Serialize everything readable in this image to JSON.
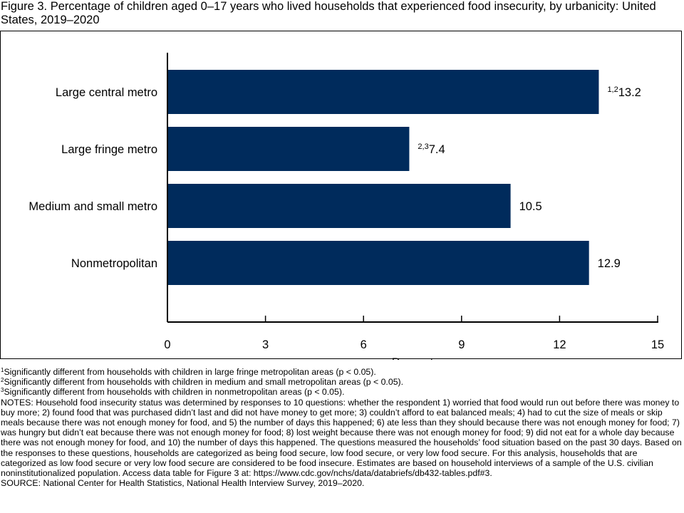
{
  "title": "Figure 3. Percentage of children aged 0–17 years who lived households that experienced food insecurity, by urbanicity: United States, 2019–2020",
  "chart_data": {
    "type": "bar",
    "orientation": "horizontal",
    "categories": [
      "Large central metro",
      "Large fringe metro",
      "Medium and small metro",
      "Nonmetropolitan"
    ],
    "values": [
      13.2,
      7.4,
      10.5,
      12.9
    ],
    "value_labels": [
      "13.2",
      "7.4",
      "10.5",
      "12.9"
    ],
    "value_superscripts": [
      "1,2",
      "2,3",
      "",
      ""
    ],
    "xlabel": "Percent",
    "ylabel": "",
    "xlim": [
      0,
      15
    ],
    "xticks": [
      0,
      3,
      6,
      9,
      12,
      15
    ],
    "bar_color": "#002b5c",
    "grid": false
  },
  "footnotes": [
    {
      "sup": "1",
      "text": "Significantly different from households with children in large fringe metropolitan areas (p < 0.05)."
    },
    {
      "sup": "2",
      "text": "Significantly different from households with children in medium and small metropolitan areas (p < 0.05)."
    },
    {
      "sup": "3",
      "text": "Significantly different from households with children in nonmetropolitan areas (p < 0.05)."
    }
  ],
  "notes": "NOTES: Household food insecurity status was determined by responses to 10 questions: whether the respondent 1) worried that food would run out before there was money to buy more; 2) found food that was purchased didn’t last and did not have money to get more; 3) couldn’t afford to eat balanced meals; 4) had to cut the size of meals or skip meals because there was not enough money for food, and 5) the number of days this happened; 6) ate less than they should because there was not enough money for food; 7) was hungry but didn’t eat because there was not enough money for food; 8) lost weight because there was not enough money for food; 9) did not eat for a whole day because there was not enough money for food, and 10) the number of days this happened. The questions measured the households’ food situation based on the past 30 days. Based on the responses to these questions, households are categorized as being food secure, low food secure, or very low food secure. For this analysis, households that are categorized as low food secure or very low food secure are considered to be food insecure. Estimates are based on household interviews of a sample of the U.S. civilian noninstitutionalized population.  Access data table for Figure 3 at: https://www.cdc.gov/nchs/data/databriefs/db432-tables.pdf#3.",
  "source": "SOURCE: National Center for Health Statistics, National Health Interview Survey, 2019–2020."
}
